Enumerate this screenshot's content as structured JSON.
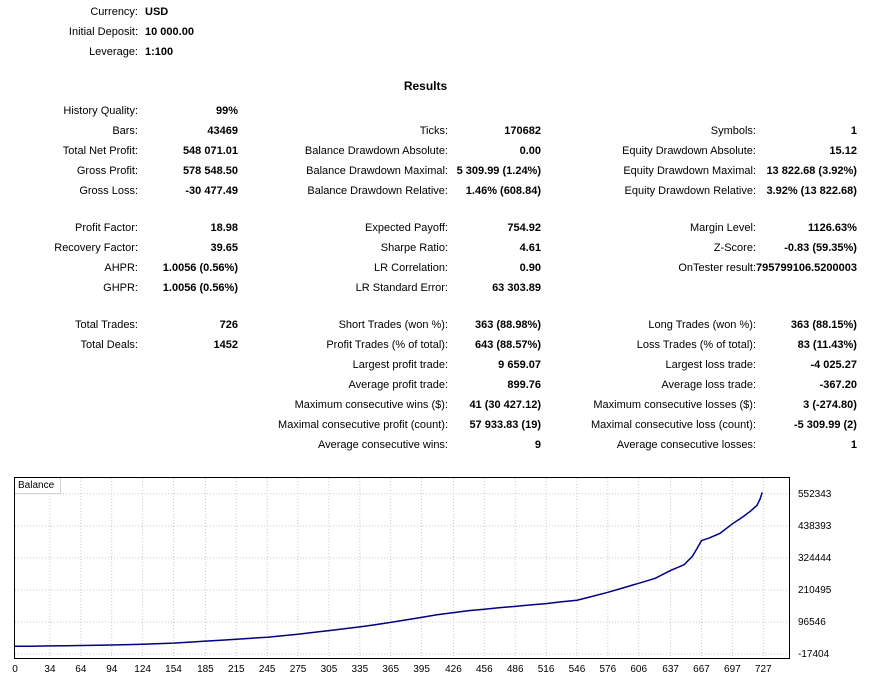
{
  "header": {
    "rows": [
      {
        "label": "Currency:",
        "value": "USD"
      },
      {
        "label": "Initial Deposit:",
        "value": "10 000.00"
      },
      {
        "label": "Leverage:",
        "value": "1:100"
      }
    ]
  },
  "results": {
    "title": "Results",
    "rows": [
      {
        "cells": [
          {
            "label": "History Quality:",
            "value": "99%"
          },
          null,
          null
        ]
      },
      {
        "cells": [
          {
            "label": "Bars:",
            "value": "43469"
          },
          {
            "label": "Ticks:",
            "value": "170682"
          },
          {
            "label": "Symbols:",
            "value": "1"
          }
        ]
      },
      {
        "cells": [
          {
            "label": "Total Net Profit:",
            "value": "548 071.01"
          },
          {
            "label": "Balance Drawdown Absolute:",
            "value": "0.00"
          },
          {
            "label": "Equity Drawdown Absolute:",
            "value": "15.12"
          }
        ]
      },
      {
        "cells": [
          {
            "label": "Gross Profit:",
            "value": "578 548.50"
          },
          {
            "label": "Balance Drawdown Maximal:",
            "value": "5 309.99 (1.24%)"
          },
          {
            "label": "Equity Drawdown Maximal:",
            "value": "13 822.68 (3.92%)"
          }
        ]
      },
      {
        "cells": [
          {
            "label": "Gross Loss:",
            "value": "-30 477.49"
          },
          {
            "label": "Balance Drawdown Relative:",
            "value": "1.46% (608.84)"
          },
          {
            "label": "Equity Drawdown Relative:",
            "value": "3.92% (13 822.68)"
          }
        ]
      },
      {
        "type": "spacer"
      },
      {
        "cells": [
          {
            "label": "Profit Factor:",
            "value": "18.98"
          },
          {
            "label": "Expected Payoff:",
            "value": "754.92"
          },
          {
            "label": "Margin Level:",
            "value": "1126.63%"
          }
        ]
      },
      {
        "cells": [
          {
            "label": "Recovery Factor:",
            "value": "39.65"
          },
          {
            "label": "Sharpe Ratio:",
            "value": "4.61"
          },
          {
            "label": "Z-Score:",
            "value": "-0.83 (59.35%)"
          }
        ]
      },
      {
        "cells": [
          {
            "label": "AHPR:",
            "value": "1.0056 (0.56%)"
          },
          {
            "label": "LR Correlation:",
            "value": "0.90"
          },
          {
            "label": "OnTester result:",
            "value": "795799106.5200003"
          }
        ]
      },
      {
        "cells": [
          {
            "label": "GHPR:",
            "value": "1.0056 (0.56%)"
          },
          {
            "label": "LR Standard Error:",
            "value": "63 303.89"
          },
          null
        ]
      },
      {
        "type": "spacer"
      },
      {
        "cells": [
          {
            "label": "Total Trades:",
            "value": "726"
          },
          {
            "label": "Short Trades (won %):",
            "value": "363 (88.98%)"
          },
          {
            "label": "Long Trades (won %):",
            "value": "363 (88.15%)"
          }
        ]
      },
      {
        "cells": [
          {
            "label": "Total Deals:",
            "value": "1452"
          },
          {
            "label": "Profit Trades (% of total):",
            "value": "643 (88.57%)"
          },
          {
            "label": "Loss Trades (% of total):",
            "value": "83 (11.43%)"
          }
        ]
      },
      {
        "cells": [
          null,
          {
            "label": "Largest profit trade:",
            "value": "9 659.07"
          },
          {
            "label": "Largest loss trade:",
            "value": "-4 025.27"
          }
        ]
      },
      {
        "cells": [
          null,
          {
            "label": "Average profit trade:",
            "value": "899.76"
          },
          {
            "label": "Average loss trade:",
            "value": "-367.20"
          }
        ]
      },
      {
        "cells": [
          null,
          {
            "label": "Maximum consecutive wins ($):",
            "value": "41 (30 427.12)"
          },
          {
            "label": "Maximum consecutive losses ($):",
            "value": "3 (-274.80)"
          }
        ]
      },
      {
        "cells": [
          null,
          {
            "label": "Maximal consecutive profit (count):",
            "value": "57 933.83 (19)"
          },
          {
            "label": "Maximal consecutive loss (count):",
            "value": "-5 309.99 (2)"
          }
        ]
      },
      {
        "cells": [
          null,
          {
            "label": "Average consecutive wins:",
            "value": "9"
          },
          {
            "label": "Average consecutive losses:",
            "value": "1"
          }
        ]
      }
    ]
  },
  "chart_data": {
    "type": "line",
    "title": "Balance",
    "xlabel": "",
    "ylabel": "",
    "x_ticks": [
      0,
      34,
      64,
      94,
      124,
      154,
      185,
      215,
      245,
      275,
      305,
      335,
      365,
      395,
      426,
      456,
      486,
      516,
      546,
      576,
      606,
      637,
      667,
      697,
      727
    ],
    "y_ticks": [
      -17404,
      96546,
      210495,
      324444,
      438393,
      552343
    ],
    "x_range": [
      0,
      752
    ],
    "y_range": [
      -31600,
      608800
    ],
    "grid": true,
    "legend_position": "top-left-inside",
    "line_color": "#000080",
    "grid_color": "#c8c8c8",
    "series": [
      {
        "name": "Balance",
        "points": [
          [
            0,
            10000
          ],
          [
            15,
            10500
          ],
          [
            34,
            11500
          ],
          [
            50,
            12300
          ],
          [
            64,
            13000
          ],
          [
            80,
            13800
          ],
          [
            94,
            14500
          ],
          [
            110,
            16000
          ],
          [
            124,
            17500
          ],
          [
            140,
            19500
          ],
          [
            154,
            21500
          ],
          [
            170,
            25000
          ],
          [
            185,
            28500
          ],
          [
            200,
            31800
          ],
          [
            215,
            35000
          ],
          [
            230,
            38700
          ],
          [
            245,
            42500
          ],
          [
            260,
            47500
          ],
          [
            275,
            53000
          ],
          [
            290,
            59500
          ],
          [
            305,
            66000
          ],
          [
            320,
            72500
          ],
          [
            335,
            79000
          ],
          [
            350,
            87000
          ],
          [
            365,
            95000
          ],
          [
            380,
            104000
          ],
          [
            395,
            113000
          ],
          [
            410,
            122000
          ],
          [
            426,
            130000
          ],
          [
            440,
            136500
          ],
          [
            456,
            142000
          ],
          [
            470,
            147000
          ],
          [
            486,
            152000
          ],
          [
            500,
            157000
          ],
          [
            516,
            162000
          ],
          [
            530,
            168000
          ],
          [
            546,
            174000
          ],
          [
            560,
            187000
          ],
          [
            576,
            202000
          ],
          [
            590,
            217000
          ],
          [
            606,
            234000
          ],
          [
            622,
            252000
          ],
          [
            637,
            280000
          ],
          [
            650,
            300000
          ],
          [
            658,
            330000
          ],
          [
            663,
            360000
          ],
          [
            667,
            386000
          ],
          [
            675,
            396000
          ],
          [
            685,
            412000
          ],
          [
            697,
            446000
          ],
          [
            707,
            470000
          ],
          [
            715,
            492000
          ],
          [
            721,
            512000
          ],
          [
            724,
            535000
          ],
          [
            726,
            558071
          ]
        ]
      }
    ]
  }
}
